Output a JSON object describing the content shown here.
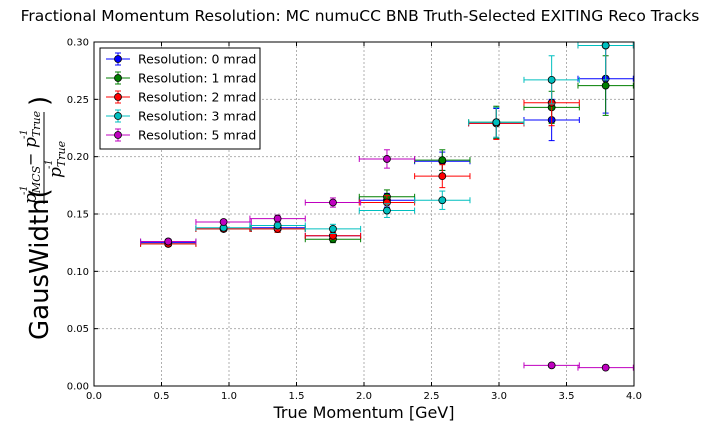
{
  "chart_data": {
    "type": "scatter",
    "title": "Fractional Momentum Resolution: MC numuCC BNB Truth-Selected EXITING Reco Tracks",
    "xlabel": "True Momentum [GeV]",
    "ylabel": {
      "prefix": "GausWidth(",
      "num_p": "p",
      "num_sub1": "MCS",
      "num_sup1": "-1",
      "num_minus": " − ",
      "num_sub2": "True",
      "num_sup2": "-1",
      "den_p": "p",
      "den_sub": "True",
      "den_sup": "-1",
      "suffix": ")"
    },
    "xlim": [
      0.0,
      4.0
    ],
    "ylim": [
      0.0,
      0.3
    ],
    "xticks": [
      "0.0",
      "0.5",
      "1.0",
      "1.5",
      "2.0",
      "2.5",
      "3.0",
      "3.5",
      "4.0"
    ],
    "yticks": [
      "0.00",
      "0.05",
      "0.10",
      "0.15",
      "0.20",
      "0.25",
      "0.30"
    ],
    "grid": true,
    "legend_position": "top-left",
    "series": [
      {
        "name": "Resolution: 0 mrad",
        "color": "#0000ff",
        "x_offset": 0.0,
        "values": [
          0.125,
          0.137,
          0.138,
          0.131,
          0.162,
          0.196,
          0.229,
          0.232,
          0.268
        ],
        "errors": [
          0.002,
          0.002,
          0.003,
          0.003,
          0.006,
          0.008,
          0.013,
          0.018,
          0.03
        ]
      },
      {
        "name": "Resolution: 1 mrad",
        "color": "#007f00",
        "x_offset": 0.0,
        "values": [
          0.124,
          0.137,
          0.137,
          0.128,
          0.165,
          0.197,
          0.23,
          0.243,
          0.262
        ],
        "errors": [
          0.002,
          0.002,
          0.003,
          0.003,
          0.006,
          0.009,
          0.014,
          0.014,
          0.026
        ]
      },
      {
        "name": "Resolution: 2 mrad",
        "color": "#ff0000",
        "x_offset": 0.0,
        "values": [
          0.124,
          0.137,
          0.137,
          0.131,
          0.16,
          0.183,
          0.229,
          0.247,
          0.297
        ],
        "errors": [
          0.002,
          0.002,
          0.003,
          0.003,
          0.006,
          0.01,
          0.014,
          0.02,
          0.03
        ]
      },
      {
        "name": "Resolution: 3 mrad",
        "color": "#00bfbf",
        "x_offset": 0.0,
        "values": [
          0.126,
          0.138,
          0.14,
          0.137,
          0.153,
          0.162,
          0.23,
          0.267,
          0.297
        ],
        "errors": [
          0.002,
          0.002,
          0.003,
          0.004,
          0.006,
          0.008,
          0.013,
          0.021,
          0.03
        ]
      },
      {
        "name": "Resolution: 5 mrad",
        "color": "#bf00bf",
        "x_offset": 0.0,
        "values": [
          0.126,
          0.143,
          0.146,
          0.16,
          0.198,
          null,
          null,
          0.018,
          0.016
        ],
        "errors": [
          0.002,
          0.002,
          0.003,
          0.004,
          0.008,
          0,
          0,
          0.001,
          0.001
        ]
      }
    ],
    "bin_centers": [
      0.55,
      0.96,
      1.36,
      1.77,
      2.17,
      2.58,
      2.98,
      3.39,
      3.79
    ],
    "bin_halfwidth": 0.205
  }
}
